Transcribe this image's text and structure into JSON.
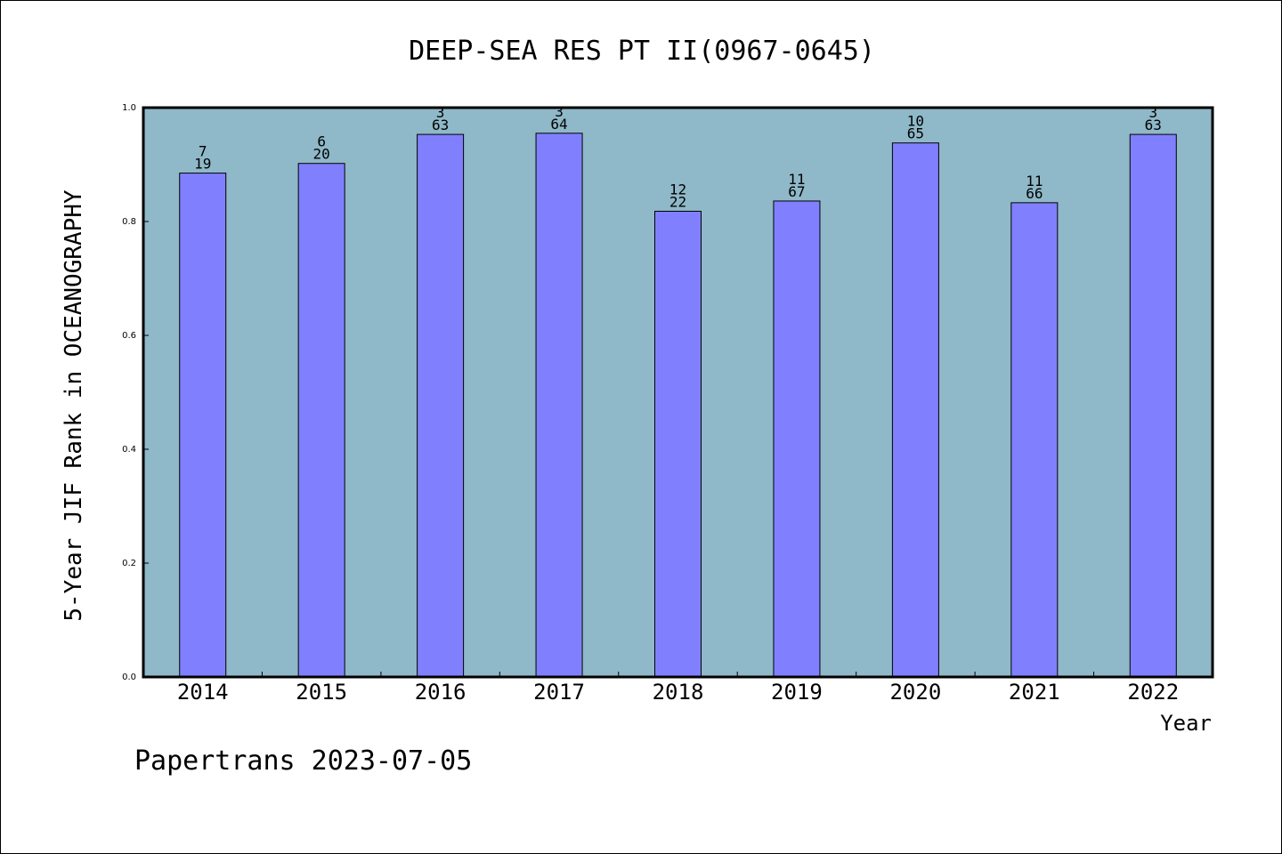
{
  "chart_data": {
    "type": "bar",
    "title": "DEEP-SEA RES PT II(0967-0645)",
    "xlabel": "Year",
    "ylabel": "5-Year JIF Rank in OCEANOGRAPHY",
    "categories": [
      "2014",
      "2015",
      "2016",
      "2017",
      "2018",
      "2019",
      "2020",
      "2021",
      "2022"
    ],
    "values": [
      0.885,
      0.902,
      0.953,
      0.955,
      0.818,
      0.836,
      0.938,
      0.833,
      0.953
    ],
    "rank": [
      "7",
      "6",
      "3",
      "3",
      "12",
      "11",
      "10",
      "11",
      "3"
    ],
    "total": [
      "19",
      "20",
      "63",
      "64",
      "22",
      "67",
      "65",
      "66",
      "63"
    ],
    "yticks": [
      "0.0",
      "0.2",
      "0.4",
      "0.6",
      "0.8",
      "1.0"
    ],
    "ylim": [
      0,
      1.0
    ],
    "grid": false,
    "colors": {
      "plot_background": "#8fb8c8",
      "bar_fill": "#8080ff",
      "bar_edge": "#000000"
    }
  },
  "footer": "Papertrans 2023-07-05"
}
